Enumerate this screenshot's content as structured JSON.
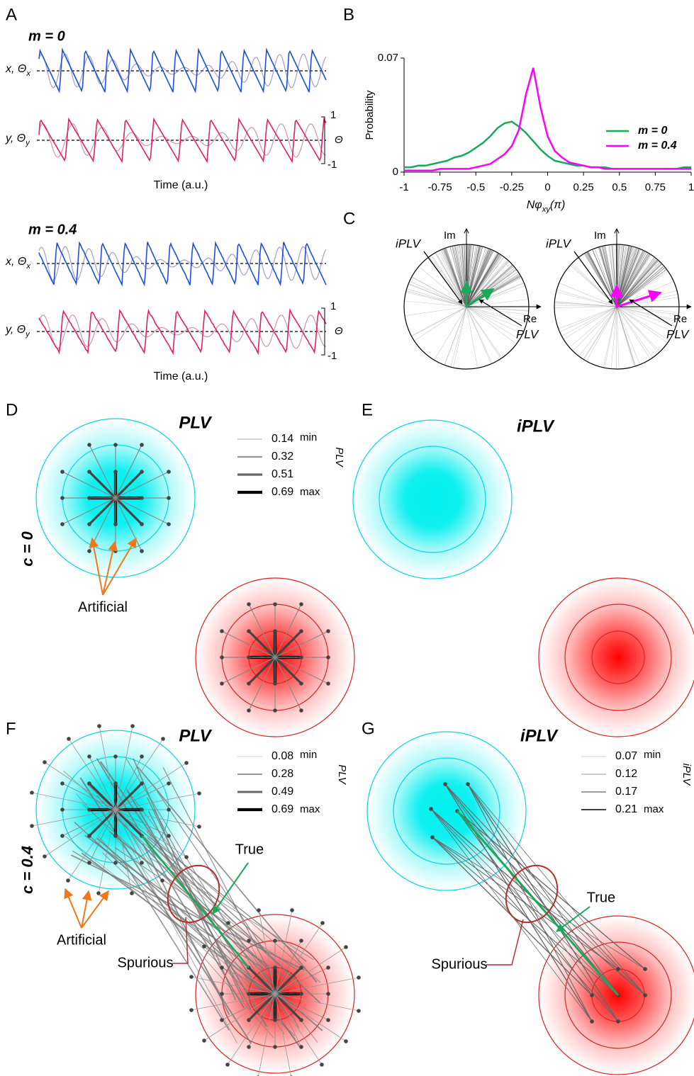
{
  "panel_labels": [
    "A",
    "B",
    "C",
    "D",
    "E",
    "F",
    "G"
  ],
  "A": {
    "top": {
      "title": "m = 0",
      "x_label": {
        "main": "x, Θ",
        "sub": "x"
      },
      "y_label": {
        "main": "y, Θ",
        "sub": "y"
      },
      "scale": {
        "max": 1,
        "symbol": "Θ",
        "min": -1
      },
      "xlabel": "Time (a.u.)"
    },
    "bottom": {
      "title": "m = 0.4",
      "x_label": {
        "main": "x, Θ",
        "sub": "x"
      },
      "y_label": {
        "main": "y, Θ",
        "sub": "y"
      },
      "scale": {
        "max": 1,
        "symbol": "Θ",
        "min": -1
      },
      "xlabel": "Time (a.u.)"
    }
  },
  "chart_data": {
    "type": "line",
    "ylabel": "Probability",
    "xlabel": {
      "main": "Nφ",
      "sub": "xy",
      "end": "(π)"
    },
    "x": [
      -1,
      -0.95,
      -0.9,
      -0.85,
      -0.8,
      -0.75,
      -0.7,
      -0.65,
      -0.6,
      -0.55,
      -0.5,
      -0.45,
      -0.4,
      -0.35,
      -0.3,
      -0.25,
      -0.2,
      -0.15,
      -0.1,
      -0.05,
      0,
      0.05,
      0.1,
      0.15,
      0.2,
      0.25,
      0.3,
      0.35,
      0.4,
      0.45,
      0.5,
      0.55,
      0.6,
      0.65,
      0.7,
      0.75,
      0.8,
      0.85,
      0.9,
      0.95,
      1
    ],
    "series": [
      {
        "name": "m = 0",
        "color": "#1aa85a",
        "values": [
          0.003,
          0.003,
          0.004,
          0.004,
          0.005,
          0.006,
          0.007,
          0.009,
          0.01,
          0.012,
          0.015,
          0.018,
          0.022,
          0.027,
          0.03,
          0.031,
          0.028,
          0.024,
          0.019,
          0.014,
          0.01,
          0.007,
          0.006,
          0.005,
          0.004,
          0.004,
          0.003,
          0.003,
          0.003,
          0.002,
          0.002,
          0.002,
          0.002,
          0.002,
          0.002,
          0.002,
          0.002,
          0.002,
          0.002,
          0.003,
          0.003
        ]
      },
      {
        "name": "m = 0.4",
        "color": "#ff00ff",
        "values": [
          0.001,
          0.001,
          0.001,
          0.001,
          0.001,
          0.002,
          0.002,
          0.002,
          0.002,
          0.002,
          0.003,
          0.004,
          0.005,
          0.008,
          0.011,
          0.016,
          0.026,
          0.048,
          0.064,
          0.04,
          0.022,
          0.013,
          0.009,
          0.006,
          0.005,
          0.004,
          0.003,
          0.003,
          0.002,
          0.002,
          0.002,
          0.002,
          0.002,
          0.002,
          0.002,
          0.002,
          0.002,
          0.002,
          0.002,
          0.002,
          0.002
        ]
      }
    ],
    "xlim": [
      -1,
      1
    ],
    "ylim": [
      0,
      0.07
    ],
    "xticks": [
      -1,
      -0.75,
      -0.5,
      -0.25,
      0,
      0.25,
      0.5,
      0.75,
      1
    ],
    "yticks": [
      0,
      0.07
    ],
    "legend": "right"
  },
  "C": {
    "left": {
      "im": "Im",
      "re": "Re",
      "iplv": "iPLV",
      "plv": "PLV"
    },
    "right": {
      "im": "Im",
      "re": "Re",
      "iplv": "iPLV",
      "plv": "PLV"
    }
  },
  "D": {
    "title": "PLV",
    "legend": {
      "values": [
        0.14,
        0.32,
        0.51,
        0.69
      ],
      "min": "min",
      "max": "max",
      "title": "PLV"
    },
    "condition": "c = 0",
    "annotation": "Artificial"
  },
  "E": {
    "title": "iPLV"
  },
  "F": {
    "title": "PLV",
    "legend": {
      "values": [
        0.08,
        0.28,
        0.49,
        0.69
      ],
      "min": "min",
      "max": "max",
      "title": "PLV"
    },
    "condition": "c = 0.4",
    "annotations": {
      "artificial": "Artificial",
      "true": "True",
      "spurious": "Spurious"
    }
  },
  "G": {
    "title": "iPLV",
    "legend": {
      "values": [
        0.07,
        0.12,
        0.17,
        0.21
      ],
      "min": "min",
      "max": "max",
      "title": "iPLV"
    },
    "annotations": {
      "true": "True",
      "spurious": "Spurious"
    }
  }
}
